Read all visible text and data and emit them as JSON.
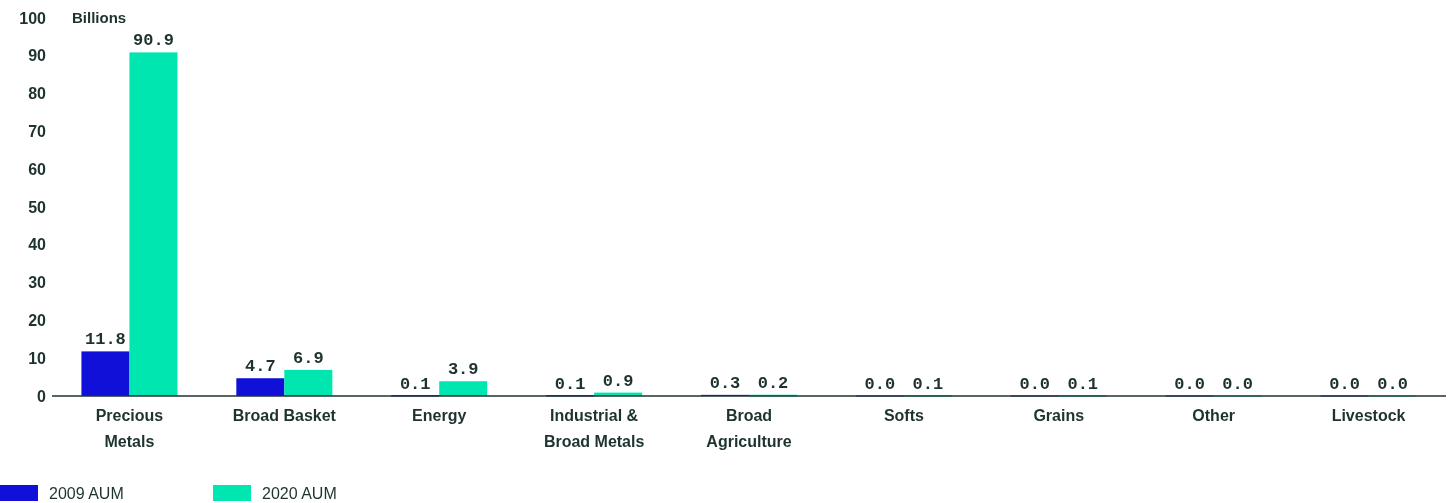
{
  "chart_data": {
    "type": "bar",
    "ylabel": "Billions",
    "categories": [
      "Precious Metals",
      "Broad Basket",
      "Energy",
      "Industrial & Broad Metals",
      "Broad Agriculture",
      "Softs",
      "Grains",
      "Other",
      "Livestock"
    ],
    "series": [
      {
        "name": "2009 AUM",
        "color": "#1010d8",
        "values": [
          11.8,
          4.7,
          0.1,
          0.1,
          0.3,
          0.0,
          0.0,
          0.0,
          0.0
        ],
        "value_labels": [
          "11.8",
          "4.7",
          "0.1",
          "0.1",
          "0.3",
          "0.0",
          "0.0",
          "0.0",
          "0.0"
        ]
      },
      {
        "name": "2020 AUM",
        "color": "#00e6b0",
        "values": [
          90.9,
          6.9,
          3.9,
          0.9,
          0.2,
          0.1,
          0.1,
          0.0,
          0.0
        ],
        "value_labels": [
          "90.9",
          "6.9",
          "3.9",
          "0.9",
          "0.2",
          "0.1",
          "0.1",
          "0.0",
          "0.0"
        ]
      }
    ],
    "ylim": [
      0,
      100
    ],
    "yticks": [
      0,
      10,
      20,
      30,
      40,
      50,
      60,
      70,
      80,
      90,
      100
    ],
    "grid": false,
    "legend": "bottom left"
  }
}
